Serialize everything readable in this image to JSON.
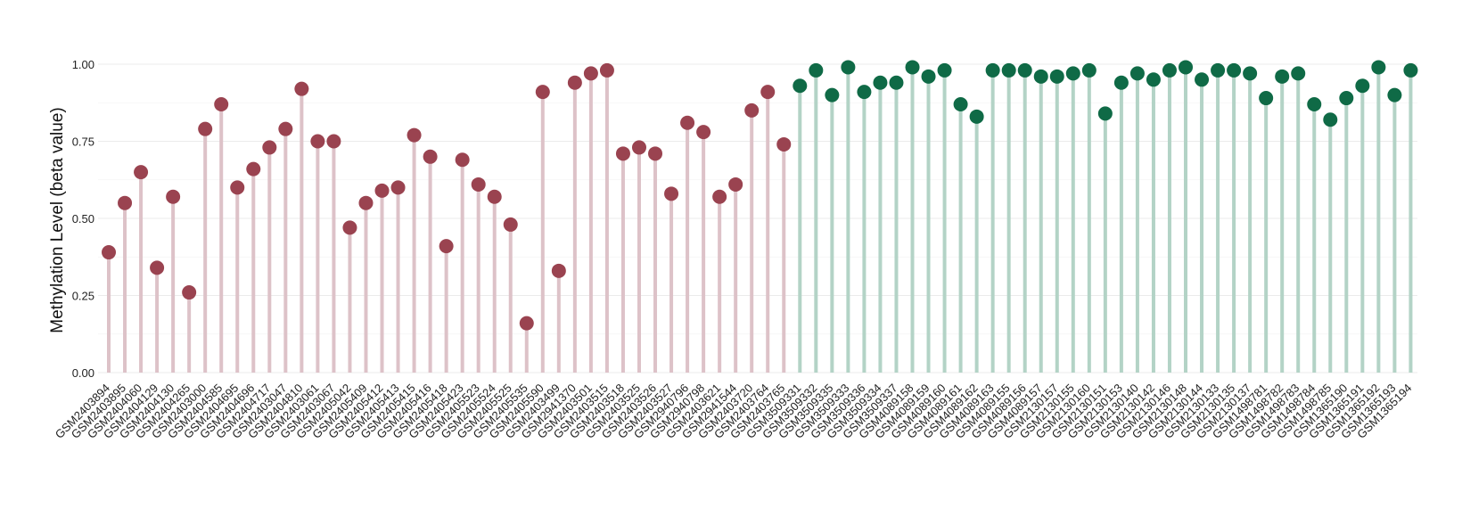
{
  "chart_data": {
    "type": "lollipop",
    "title": "",
    "xlabel": "",
    "ylabel": "Methylation Level (beta value)",
    "ylim": [
      0,
      1.0
    ],
    "yticks": [
      0,
      0.25,
      0.5,
      0.75,
      1.0
    ],
    "ytick_labels": [
      "0.00",
      "0.25",
      "0.50",
      "0.75",
      "1.00"
    ],
    "grid": true,
    "legend": "none",
    "x_label_rotation": 45,
    "groups": [
      {
        "dot_color": "#9a4350",
        "stem_color": "#ddc2c8"
      },
      {
        "dot_color": "#0f6a46",
        "stem_color": "#b3d3c6"
      }
    ],
    "points": [
      {
        "x": "GSM2403894",
        "y": 0.39,
        "group": 0
      },
      {
        "x": "GSM2403895",
        "y": 0.55,
        "group": 0
      },
      {
        "x": "GSM2404060",
        "y": 0.65,
        "group": 0
      },
      {
        "x": "GSM2404129",
        "y": 0.34,
        "group": 0
      },
      {
        "x": "GSM2404130",
        "y": 0.57,
        "group": 0
      },
      {
        "x": "GSM2404265",
        "y": 0.26,
        "group": 0
      },
      {
        "x": "GSM2403000",
        "y": 0.79,
        "group": 0
      },
      {
        "x": "GSM2404585",
        "y": 0.87,
        "group": 0
      },
      {
        "x": "GSM2404695",
        "y": 0.6,
        "group": 0
      },
      {
        "x": "GSM2404696",
        "y": 0.66,
        "group": 0
      },
      {
        "x": "GSM2404717",
        "y": 0.73,
        "group": 0
      },
      {
        "x": "GSM2403047",
        "y": 0.79,
        "group": 0
      },
      {
        "x": "GSM2404810",
        "y": 0.92,
        "group": 0
      },
      {
        "x": "GSM2403061",
        "y": 0.75,
        "group": 0
      },
      {
        "x": "GSM2403067",
        "y": 0.75,
        "group": 0
      },
      {
        "x": "GSM2405042",
        "y": 0.47,
        "group": 0
      },
      {
        "x": "GSM2405409",
        "y": 0.55,
        "group": 0
      },
      {
        "x": "GSM2405412",
        "y": 0.59,
        "group": 0
      },
      {
        "x": "GSM2405413",
        "y": 0.6,
        "group": 0
      },
      {
        "x": "GSM2405415",
        "y": 0.77,
        "group": 0
      },
      {
        "x": "GSM2405416",
        "y": 0.7,
        "group": 0
      },
      {
        "x": "GSM2405418",
        "y": 0.41,
        "group": 0
      },
      {
        "x": "GSM2405423",
        "y": 0.69,
        "group": 0
      },
      {
        "x": "GSM2405523",
        "y": 0.61,
        "group": 0
      },
      {
        "x": "GSM2405524",
        "y": 0.57,
        "group": 0
      },
      {
        "x": "GSM2405525",
        "y": 0.48,
        "group": 0
      },
      {
        "x": "GSM2405535",
        "y": 0.16,
        "group": 0
      },
      {
        "x": "GSM2405590",
        "y": 0.91,
        "group": 0
      },
      {
        "x": "GSM2403499",
        "y": 0.33,
        "group": 0
      },
      {
        "x": "GSM2941370",
        "y": 0.94,
        "group": 0
      },
      {
        "x": "GSM2403501",
        "y": 0.97,
        "group": 0
      },
      {
        "x": "GSM2403515",
        "y": 0.98,
        "group": 0
      },
      {
        "x": "GSM2403518",
        "y": 0.71,
        "group": 0
      },
      {
        "x": "GSM2403525",
        "y": 0.73,
        "group": 0
      },
      {
        "x": "GSM2403526",
        "y": 0.71,
        "group": 0
      },
      {
        "x": "GSM2403527",
        "y": 0.58,
        "group": 0
      },
      {
        "x": "GSM2940796",
        "y": 0.81,
        "group": 0
      },
      {
        "x": "GSM2940798",
        "y": 0.78,
        "group": 0
      },
      {
        "x": "GSM2403621",
        "y": 0.57,
        "group": 0
      },
      {
        "x": "GSM2941544",
        "y": 0.61,
        "group": 0
      },
      {
        "x": "GSM2403720",
        "y": 0.85,
        "group": 0
      },
      {
        "x": "GSM2403764",
        "y": 0.91,
        "group": 0
      },
      {
        "x": "GSM2403765",
        "y": 0.74,
        "group": 0
      },
      {
        "x": "GSM3509331",
        "y": 0.93,
        "group": 1
      },
      {
        "x": "GSM3509332",
        "y": 0.98,
        "group": 1
      },
      {
        "x": "GSM3509335",
        "y": 0.9,
        "group": 1
      },
      {
        "x": "GSM3509333",
        "y": 0.99,
        "group": 1
      },
      {
        "x": "GSM3509336",
        "y": 0.91,
        "group": 1
      },
      {
        "x": "GSM3509334",
        "y": 0.94,
        "group": 1
      },
      {
        "x": "GSM3509337",
        "y": 0.94,
        "group": 1
      },
      {
        "x": "GSM4089158",
        "y": 0.99,
        "group": 1
      },
      {
        "x": "GSM4089159",
        "y": 0.96,
        "group": 1
      },
      {
        "x": "GSM4089160",
        "y": 0.98,
        "group": 1
      },
      {
        "x": "GSM4089161",
        "y": 0.87,
        "group": 1
      },
      {
        "x": "GSM4089162",
        "y": 0.83,
        "group": 1
      },
      {
        "x": "GSM4089163",
        "y": 0.98,
        "group": 1
      },
      {
        "x": "GSM4089155",
        "y": 0.98,
        "group": 1
      },
      {
        "x": "GSM4089156",
        "y": 0.98,
        "group": 1
      },
      {
        "x": "GSM4089157",
        "y": 0.96,
        "group": 1
      },
      {
        "x": "GSM2130157",
        "y": 0.96,
        "group": 1
      },
      {
        "x": "GSM2130155",
        "y": 0.97,
        "group": 1
      },
      {
        "x": "GSM2130160",
        "y": 0.98,
        "group": 1
      },
      {
        "x": "GSM2130151",
        "y": 0.84,
        "group": 1
      },
      {
        "x": "GSM2130153",
        "y": 0.94,
        "group": 1
      },
      {
        "x": "GSM2130140",
        "y": 0.97,
        "group": 1
      },
      {
        "x": "GSM2130142",
        "y": 0.95,
        "group": 1
      },
      {
        "x": "GSM2130146",
        "y": 0.98,
        "group": 1
      },
      {
        "x": "GSM2130148",
        "y": 0.99,
        "group": 1
      },
      {
        "x": "GSM2130144",
        "y": 0.95,
        "group": 1
      },
      {
        "x": "GSM2130133",
        "y": 0.98,
        "group": 1
      },
      {
        "x": "GSM2130135",
        "y": 0.98,
        "group": 1
      },
      {
        "x": "GSM2130137",
        "y": 0.97,
        "group": 1
      },
      {
        "x": "GSM1498781",
        "y": 0.89,
        "group": 1
      },
      {
        "x": "GSM1498782",
        "y": 0.96,
        "group": 1
      },
      {
        "x": "GSM1498783",
        "y": 0.97,
        "group": 1
      },
      {
        "x": "GSM1498784",
        "y": 0.87,
        "group": 1
      },
      {
        "x": "GSM1498785",
        "y": 0.82,
        "group": 1
      },
      {
        "x": "GSM1365190",
        "y": 0.89,
        "group": 1
      },
      {
        "x": "GSM1365191",
        "y": 0.93,
        "group": 1
      },
      {
        "x": "GSM1365192",
        "y": 0.99,
        "group": 1
      },
      {
        "x": "GSM1365193",
        "y": 0.9,
        "group": 1
      },
      {
        "x": "GSM1365194",
        "y": 0.98,
        "group": 1
      }
    ]
  }
}
